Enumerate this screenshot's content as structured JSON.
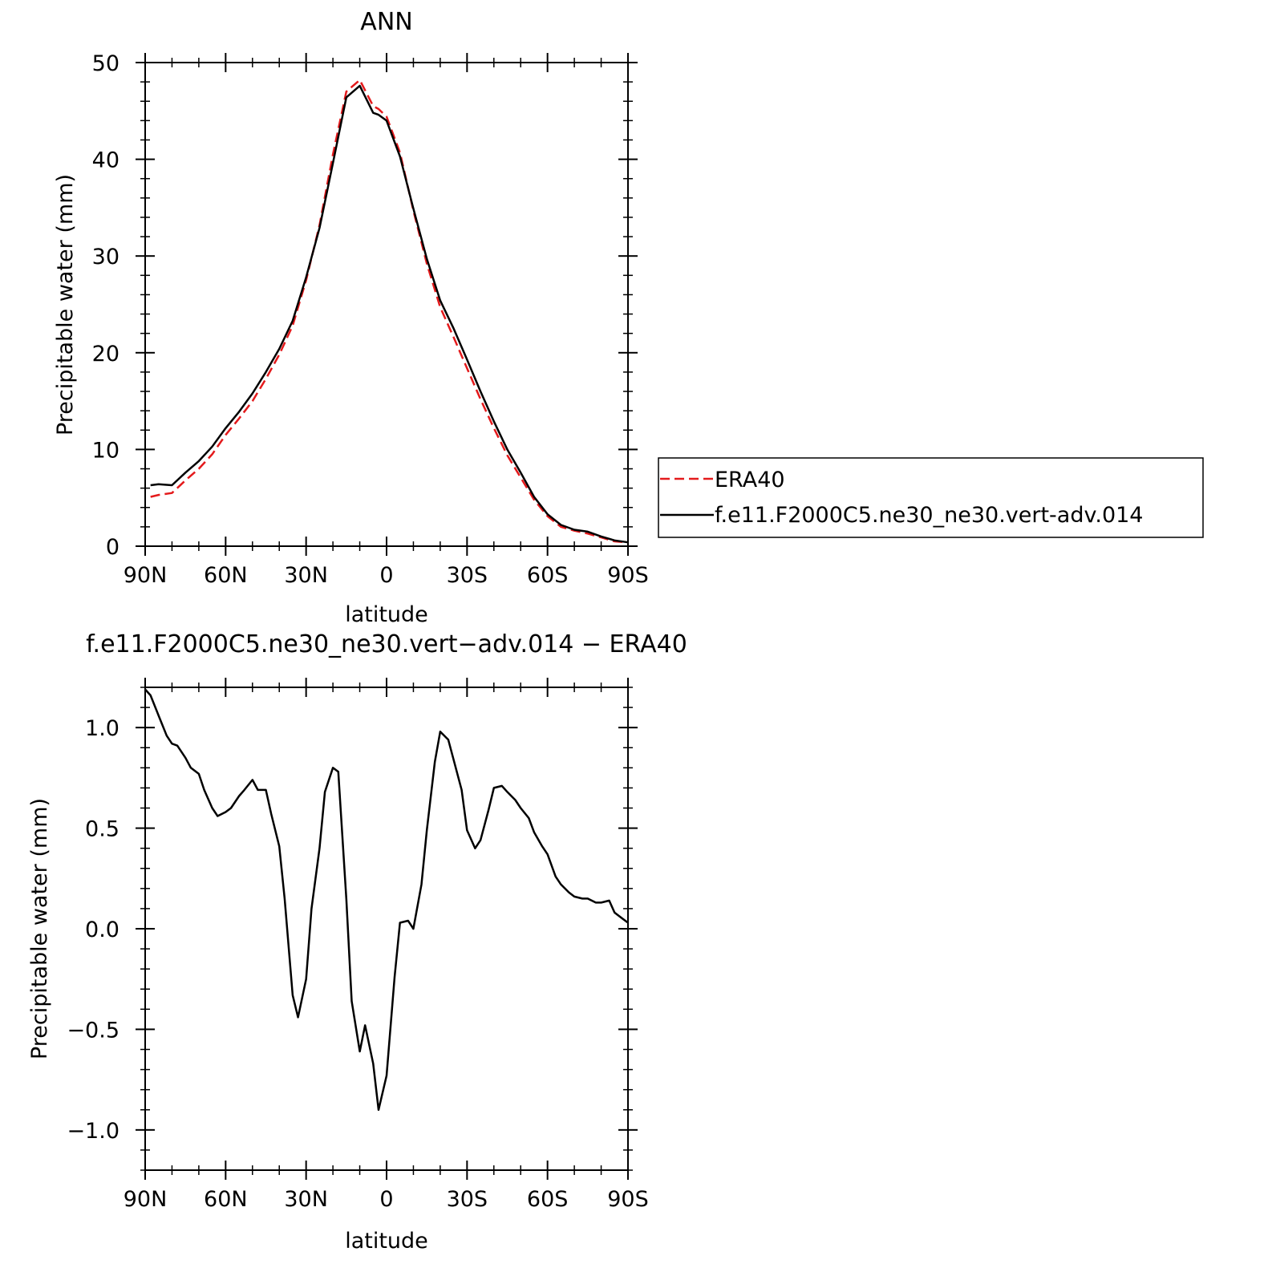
{
  "colors": {
    "era40": "#e41a1c",
    "model": "#000000"
  },
  "chart_data": [
    {
      "type": "line",
      "title": "ANN",
      "xlabel": "latitude",
      "ylabel": "Precipitable water (mm)",
      "xlim": [
        90,
        -90
      ],
      "ylim": [
        0,
        50
      ],
      "x_ticks": [
        {
          "value": 90,
          "label": "90N"
        },
        {
          "value": 60,
          "label": "60N"
        },
        {
          "value": 30,
          "label": "30N"
        },
        {
          "value": 0,
          "label": "0"
        },
        {
          "value": -30,
          "label": "30S"
        },
        {
          "value": -60,
          "label": "60S"
        },
        {
          "value": -90,
          "label": "90S"
        }
      ],
      "y_ticks": [
        {
          "value": 0,
          "label": "0"
        },
        {
          "value": 10,
          "label": "10"
        },
        {
          "value": 20,
          "label": "20"
        },
        {
          "value": 30,
          "label": "30"
        },
        {
          "value": 40,
          "label": "40"
        },
        {
          "value": 50,
          "label": "50"
        }
      ],
      "legend": {
        "placement": "right",
        "entries": [
          "ERA40",
          "f.e11.F2000C5.ne30_ne30.vert-adv.014"
        ]
      },
      "series": [
        {
          "name": "ERA40",
          "style": "dashed",
          "color": "#e41a1c",
          "x": [
            88,
            85,
            80,
            75,
            70,
            65,
            60,
            55,
            50,
            45,
            40,
            35,
            30,
            25,
            20,
            15,
            10,
            5,
            3,
            0,
            -5,
            -10,
            -15,
            -20,
            -25,
            -30,
            -35,
            -40,
            -45,
            -50,
            -55,
            -60,
            -65,
            -70,
            -75,
            -80,
            -85,
            -90
          ],
          "y": [
            5.1,
            5.3,
            5.5,
            6.8,
            8.0,
            9.5,
            11.5,
            13.2,
            15.0,
            17.3,
            19.8,
            22.8,
            27.5,
            33.2,
            40.5,
            47.0,
            48.2,
            45.5,
            45.2,
            44.4,
            40.7,
            34.7,
            29.2,
            24.7,
            21.6,
            18.4,
            15.2,
            12.2,
            9.4,
            7.1,
            4.8,
            3.1,
            2.0,
            1.6,
            1.3,
            0.9,
            0.5,
            0.4
          ]
        },
        {
          "name": "f.e11.F2000C5.ne30_ne30.vert-adv.014",
          "style": "solid",
          "color": "#000000",
          "x": [
            88,
            85,
            80,
            75,
            70,
            65,
            60,
            55,
            50,
            45,
            40,
            35,
            30,
            25,
            20,
            15,
            10,
            5,
            3,
            0,
            -5,
            -10,
            -15,
            -20,
            -25,
            -30,
            -35,
            -40,
            -45,
            -50,
            -55,
            -60,
            -65,
            -70,
            -75,
            -80,
            -85,
            -90
          ],
          "y": [
            6.3,
            6.4,
            6.3,
            7.6,
            8.8,
            10.3,
            12.2,
            13.9,
            15.8,
            18.0,
            20.4,
            23.3,
            27.8,
            32.9,
            39.6,
            46.4,
            47.6,
            44.8,
            44.6,
            44.0,
            40.3,
            34.9,
            29.7,
            25.4,
            22.5,
            19.3,
            16.0,
            12.9,
            10.0,
            7.6,
            5.1,
            3.3,
            2.2,
            1.7,
            1.5,
            1.0,
            0.6,
            0.4
          ]
        }
      ]
    },
    {
      "type": "line",
      "title": "f.e11.F2000C5.ne30_ne30.vert−adv.014 − ERA40",
      "xlabel": "latitude",
      "ylabel": "Precipitable water (mm)",
      "xlim": [
        90,
        -90
      ],
      "ylim": [
        -1.2,
        1.2
      ],
      "x_ticks": [
        {
          "value": 90,
          "label": "90N"
        },
        {
          "value": 60,
          "label": "60N"
        },
        {
          "value": 30,
          "label": "30N"
        },
        {
          "value": 0,
          "label": "0"
        },
        {
          "value": -30,
          "label": "30S"
        },
        {
          "value": -60,
          "label": "60S"
        },
        {
          "value": -90,
          "label": "90S"
        }
      ],
      "y_ticks": [
        {
          "value": -1.0,
          "label": "−1.0"
        },
        {
          "value": -0.5,
          "label": "−0.5"
        },
        {
          "value": 0.0,
          "label": "0.0"
        },
        {
          "value": 0.5,
          "label": "0.5"
        },
        {
          "value": 1.0,
          "label": "1.0"
        }
      ],
      "series": [
        {
          "style": "solid",
          "color": "#000000",
          "x": [
            90,
            88,
            85,
            82,
            80,
            78,
            75,
            73,
            70,
            68,
            65,
            63,
            60,
            58,
            55,
            53,
            50,
            48,
            45,
            43,
            40,
            38,
            35,
            33,
            30,
            28,
            25,
            23,
            20,
            18,
            15,
            13,
            10,
            8,
            5,
            3,
            0,
            -3,
            -5,
            -8,
            -10,
            -13,
            -15,
            -18,
            -20,
            -23,
            -25,
            -28,
            -30,
            -33,
            -35,
            -38,
            -40,
            -43,
            -45,
            -48,
            -50,
            -53,
            -55,
            -58,
            -60,
            -63,
            -65,
            -68,
            -70,
            -73,
            -75,
            -78,
            -80,
            -83,
            -85,
            -88,
            -90
          ],
          "y": [
            1.19,
            1.16,
            1.06,
            0.96,
            0.92,
            0.91,
            0.85,
            0.8,
            0.77,
            0.69,
            0.6,
            0.56,
            0.58,
            0.6,
            0.66,
            0.69,
            0.74,
            0.69,
            0.69,
            0.57,
            0.41,
            0.15,
            -0.33,
            -0.44,
            -0.25,
            0.1,
            0.4,
            0.68,
            0.8,
            0.78,
            0.15,
            -0.36,
            -0.61,
            -0.48,
            -0.67,
            -0.9,
            -0.73,
            -0.24,
            0.03,
            0.04,
            0.0,
            0.22,
            0.49,
            0.83,
            0.98,
            0.94,
            0.84,
            0.69,
            0.49,
            0.4,
            0.44,
            0.59,
            0.7,
            0.71,
            0.68,
            0.64,
            0.6,
            0.55,
            0.48,
            0.41,
            0.37,
            0.26,
            0.22,
            0.18,
            0.16,
            0.15,
            0.15,
            0.13,
            0.13,
            0.14,
            0.08,
            0.05,
            0.03
          ]
        }
      ]
    }
  ]
}
